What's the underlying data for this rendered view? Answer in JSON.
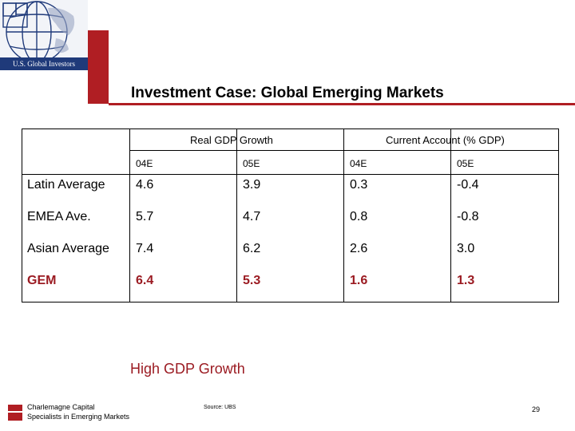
{
  "brand": {
    "name": "U.S. Global Investors",
    "colors": {
      "accent_red": "#b01e23",
      "navy": "#1f3a7a",
      "highlight_text": "#9b1b22"
    }
  },
  "slide": {
    "title": "Investment Case: Global Emerging Markets",
    "tagline": "High GDP Growth",
    "page_number": "29"
  },
  "table": {
    "groups": [
      "Real GDP Growth",
      "Current Account (% GDP)"
    ],
    "subheaders": [
      "04E",
      "05E",
      "04E",
      "05E"
    ],
    "rows": [
      {
        "label": "Latin Average",
        "values": [
          "4.6",
          "3.9",
          "0.3",
          "-0.4"
        ],
        "highlight": false
      },
      {
        "label": "EMEA Ave.",
        "values": [
          "5.7",
          "4.7",
          "0.8",
          "-0.8"
        ],
        "highlight": false
      },
      {
        "label": "Asian Average",
        "values": [
          "7.4",
          "6.2",
          "2.6",
          "3.0"
        ],
        "highlight": false
      },
      {
        "label": "GEM",
        "values": [
          "6.4",
          "5.3",
          "1.6",
          "1.3"
        ],
        "highlight": true
      }
    ]
  },
  "footer": {
    "company": "Charlemagne Capital",
    "tagline": "Specialists in Emerging Markets",
    "source": "Source: UBS"
  }
}
